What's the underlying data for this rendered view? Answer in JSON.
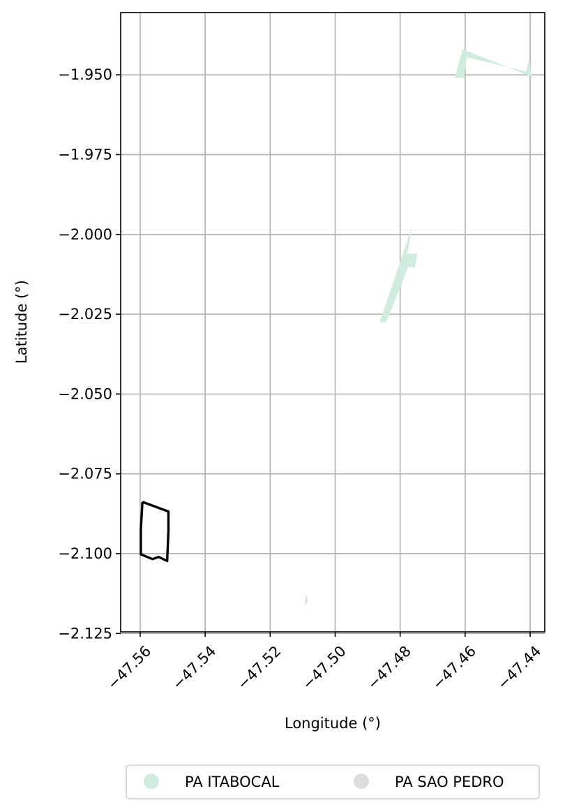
{
  "chart_data": {
    "type": "map",
    "xlabel": "Longitude (°)",
    "ylabel": "Latitude (°)",
    "xlim": [
      -47.566,
      -47.4355
    ],
    "ylim": [
      -2.1245,
      -1.9305
    ],
    "grid": true,
    "x_ticks": [
      -47.56,
      -47.54,
      -47.52,
      -47.5,
      -47.48,
      -47.46,
      -47.44
    ],
    "x_tick_labels": [
      "−47.56",
      "−47.54",
      "−47.52",
      "−47.50",
      "−47.48",
      "−47.46",
      "−47.44"
    ],
    "y_ticks": [
      -1.95,
      -1.975,
      -2.0,
      -2.025,
      -2.05,
      -2.075,
      -2.1,
      -2.125
    ],
    "y_tick_labels": [
      "−1.950",
      "−1.975",
      "−2.000",
      "−2.025",
      "−2.050",
      "−2.075",
      "−2.100",
      "−2.125"
    ],
    "legend_placement": "bottom-center",
    "legend": [
      {
        "name": "PA ITABOCAL",
        "color": "#d0ecde"
      },
      {
        "name": "PA SAO PEDRO",
        "color": "#dddddd"
      }
    ],
    "features": [
      {
        "layer": "PA ITABOCAL",
        "fill": "#d0ecde",
        "coordinates": [
          [
            -47.4632,
            -1.951
          ],
          [
            -47.4608,
            -1.942
          ],
          [
            -47.4397,
            -1.9505
          ],
          [
            -47.4402,
            -1.9445
          ],
          [
            -47.4412,
            -1.949
          ],
          [
            -47.4595,
            -1.9445
          ],
          [
            -47.4603,
            -1.951
          ]
        ]
      },
      {
        "layer": "PA ITABOCAL",
        "fill": "#d0ecde",
        "coordinates": [
          [
            -47.4863,
            -2.0275
          ],
          [
            -47.4763,
            -1.9975
          ],
          [
            -47.4778,
            -2.006
          ],
          [
            -47.4747,
            -2.006
          ],
          [
            -47.4755,
            -2.0105
          ],
          [
            -47.4774,
            -2.01
          ],
          [
            -47.4843,
            -2.0275
          ]
        ]
      },
      {
        "layer": "PA SAO PEDRO",
        "fill": "#dddddd",
        "coordinates": [
          [
            -47.5093,
            -2.114
          ],
          [
            -47.5087,
            -2.1128
          ],
          [
            -47.5085,
            -2.115
          ],
          [
            -47.5092,
            -2.116
          ]
        ]
      },
      {
        "layer": "outline",
        "stroke": "#000000",
        "coordinates": [
          [
            -47.5593,
            -2.0838
          ],
          [
            -47.5513,
            -2.0868
          ],
          [
            -47.5513,
            -2.0928
          ],
          [
            -47.5517,
            -2.1023
          ],
          [
            -47.5543,
            -2.101
          ],
          [
            -47.5562,
            -2.1017
          ],
          [
            -47.5598,
            -2.1002
          ],
          [
            -47.5598,
            -2.0925
          ],
          [
            -47.5593,
            -2.0838
          ]
        ]
      }
    ]
  }
}
